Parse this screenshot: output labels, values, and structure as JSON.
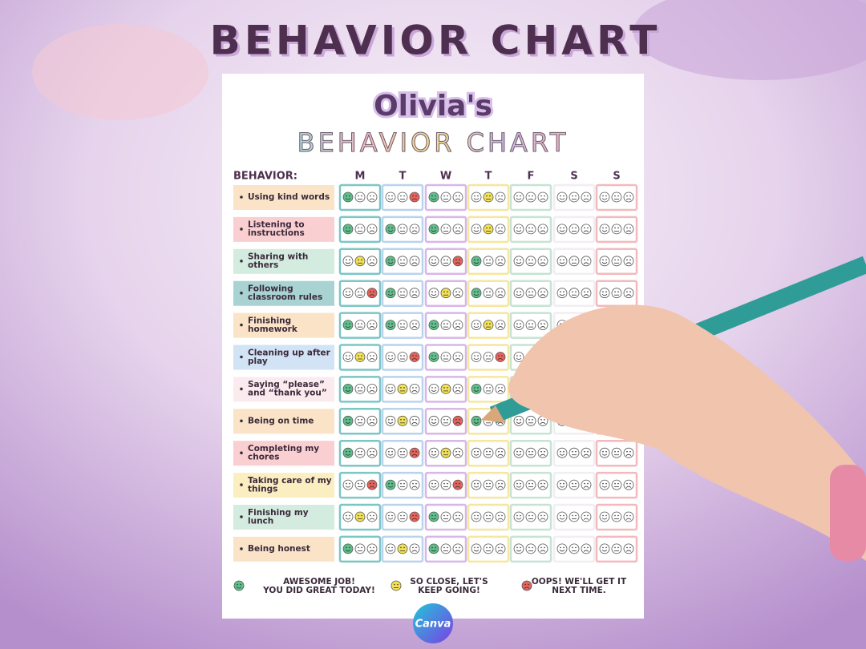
{
  "header": {
    "title": "BEHAVIOR CHART"
  },
  "sheet": {
    "name": "Olivia's",
    "subtitle": "BEHAVIOR CHART",
    "behavior_label": "BEHAVIOR:",
    "days": [
      "M",
      "T",
      "W",
      "T",
      "F",
      "S",
      "S"
    ],
    "day_colors": [
      "#7cc6c4",
      "#b9d3ee",
      "#d7b7e8",
      "#f5e6a0",
      "#c6e3d4",
      "#f1eef2",
      "#f3b9be"
    ],
    "rows": [
      {
        "lines": [
          "Using kind words"
        ],
        "color": "#fbe3c8",
        "marks": [
          "good",
          "bad",
          "good",
          "ok",
          null,
          null,
          null
        ]
      },
      {
        "lines": [
          "Listening to",
          "instructions"
        ],
        "color": "#f9cfd1",
        "marks": [
          "good",
          "good",
          "good",
          "ok",
          null,
          null,
          null
        ]
      },
      {
        "lines": [
          "Sharing with",
          "others"
        ],
        "color": "#d4ebdf",
        "marks": [
          "ok",
          "good",
          "bad",
          "good",
          null,
          null,
          null
        ]
      },
      {
        "lines": [
          "Following",
          "classroom rules"
        ],
        "color": "#a9d2d3",
        "marks": [
          "bad",
          "good",
          "ok",
          "good",
          null,
          null,
          null
        ]
      },
      {
        "lines": [
          "Finishing",
          "homework"
        ],
        "color": "#fbe3c8",
        "marks": [
          "good",
          "good",
          "good",
          "ok",
          null,
          null,
          null
        ]
      },
      {
        "lines": [
          "Cleaning up after",
          "play"
        ],
        "color": "#d2e3f5",
        "marks": [
          "ok",
          "bad",
          "good",
          "bad",
          null,
          null,
          null
        ]
      },
      {
        "lines": [
          "Saying “please”",
          "and “thank you”"
        ],
        "color": "#fcebee",
        "marks": [
          "good",
          "ok",
          "ok",
          "good",
          null,
          null,
          null
        ]
      },
      {
        "lines": [
          "Being on time"
        ],
        "color": "#fbe3c8",
        "marks": [
          "good",
          "ok",
          "bad",
          "good",
          null,
          null,
          null
        ]
      },
      {
        "lines": [
          "Completing my",
          "chores"
        ],
        "color": "#f9cfd1",
        "marks": [
          "good",
          "bad",
          "ok",
          null,
          null,
          null,
          null
        ]
      },
      {
        "lines": [
          "Taking care of my",
          "things"
        ],
        "color": "#fbeec0",
        "marks": [
          "bad",
          "good",
          "bad",
          null,
          null,
          null,
          null
        ]
      },
      {
        "lines": [
          "Finishing my",
          "lunch"
        ],
        "color": "#d4ebdf",
        "marks": [
          "ok",
          "bad",
          "good",
          null,
          null,
          null,
          null
        ]
      },
      {
        "lines": [
          "Being honest"
        ],
        "color": "#fbe3c8",
        "marks": [
          "good",
          "ok",
          "good",
          null,
          null,
          null,
          null
        ]
      }
    ],
    "legend": [
      {
        "mark": "good",
        "color": "#5cc08a",
        "lines": [
          "AWESOME JOB!",
          "YOU DID GREAT TODAY!"
        ]
      },
      {
        "mark": "ok",
        "color": "#f2e155",
        "lines": [
          "SO CLOSE, LET'S",
          "KEEP GOING!"
        ]
      },
      {
        "mark": "bad",
        "color": "#e8625c",
        "lines": [
          "OOPS! WE'LL GET IT",
          "NEXT TIME."
        ]
      }
    ]
  },
  "badge": {
    "text": "Canva"
  }
}
